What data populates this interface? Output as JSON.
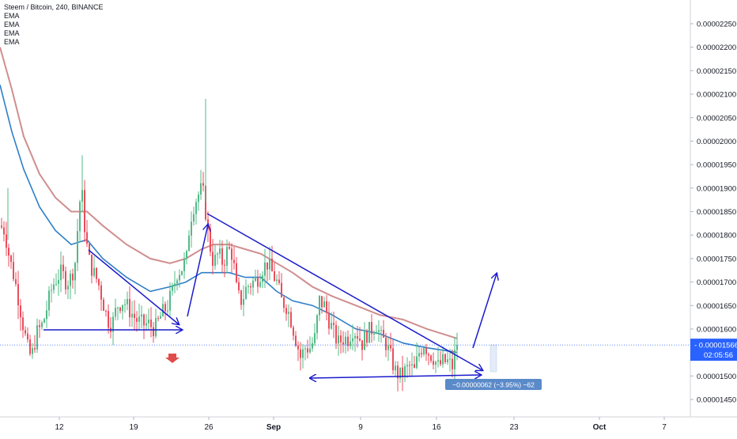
{
  "chart_data": {
    "type": "candlestick",
    "title": "Steem / Bitcoin, 240, BINANCE",
    "symbol": "Steem / Bitcoin",
    "interval": "240",
    "exchange": "BINANCE",
    "indicators": [
      "EMA",
      "EMA",
      "EMA",
      "EMA"
    ],
    "y_axis": {
      "ticks": [
        "0.00002250",
        "0.00002200",
        "0.00002150",
        "0.00002100",
        "0.00002050",
        "0.00002000",
        "0.00001950",
        "0.00001900",
        "0.00001850",
        "0.00001800",
        "0.00001750",
        "0.00001700",
        "0.00001650",
        "0.00001600",
        "0.00001500",
        "0.00001450"
      ],
      "ylim": [
        1.41e-05,
        2.28e-05
      ]
    },
    "x_axis": {
      "ticks": [
        "12",
        "19",
        "26",
        "Sep",
        "9",
        "16",
        "23",
        "Oct",
        "7"
      ]
    },
    "last_price": "0.00001566",
    "countdown": "02:05:56",
    "measure_label": "−0.00000062 (−3.95%) −62",
    "colors": {
      "up": "#53b987",
      "down": "#eb4d5c",
      "ema_fast": "#2f7fc7",
      "ema_slow": "#c87a7a",
      "drawing": "#1a1acc",
      "price_tag": "#2962ff",
      "measure_bg": "#5b8ac9",
      "signal_arrow": "#e04b4b"
    },
    "ohlc_anchors": [
      [
        0,
        1.82e-05
      ],
      [
        6,
        1.81e-05
      ],
      [
        12,
        1.75e-05
      ],
      [
        18,
        1.71e-05
      ],
      [
        24,
        1.66e-05
      ],
      [
        30,
        1.6e-05
      ],
      [
        36,
        1.55e-05
      ],
      [
        40,
        1.54e-05
      ],
      [
        46,
        1.59e-05
      ],
      [
        54,
        1.61e-05
      ],
      [
        60,
        1.65e-05
      ],
      [
        66,
        1.69e-05
      ],
      [
        72,
        1.71e-05
      ],
      [
        78,
        1.72e-05
      ],
      [
        84,
        1.7e-05
      ],
      [
        90,
        1.71e-05
      ],
      [
        96,
        1.75e-05
      ],
      [
        100,
        1.87e-05
      ],
      [
        104,
        1.88e-05
      ],
      [
        108,
        1.8e-05
      ],
      [
        112,
        1.75e-05
      ],
      [
        118,
        1.72e-05
      ],
      [
        124,
        1.7e-05
      ],
      [
        130,
        1.66e-05
      ],
      [
        136,
        1.62e-05
      ],
      [
        142,
        1.61e-05
      ],
      [
        148,
        1.65e-05
      ],
      [
        156,
        1.66e-05
      ],
      [
        164,
        1.64e-05
      ],
      [
        172,
        1.62e-05
      ],
      [
        180,
        1.61e-05
      ],
      [
        188,
        1.61e-05
      ],
      [
        196,
        1.6e-05
      ],
      [
        204,
        1.63e-05
      ],
      [
        212,
        1.65e-05
      ],
      [
        218,
        1.68e-05
      ],
      [
        224,
        1.72e-05
      ],
      [
        230,
        1.73e-05
      ],
      [
        236,
        1.75e-05
      ],
      [
        240,
        1.83e-05
      ],
      [
        246,
        1.87e-05
      ],
      [
        252,
        1.89e-05
      ],
      [
        256,
        1.9e-05
      ],
      [
        260,
        1.85e-05
      ],
      [
        264,
        1.79e-05
      ],
      [
        270,
        1.74e-05
      ],
      [
        276,
        1.76e-05
      ],
      [
        282,
        1.74e-05
      ],
      [
        288,
        1.77e-05
      ],
      [
        294,
        1.76e-05
      ],
      [
        300,
        1.67e-05
      ],
      [
        306,
        1.66e-05
      ],
      [
        312,
        1.69e-05
      ],
      [
        320,
        1.7e-05
      ],
      [
        326,
        1.71e-05
      ],
      [
        332,
        1.73e-05
      ],
      [
        338,
        1.74e-05
      ],
      [
        344,
        1.72e-05
      ],
      [
        350,
        1.7e-05
      ],
      [
        356,
        1.66e-05
      ],
      [
        362,
        1.65e-05
      ],
      [
        368,
        1.62e-05
      ],
      [
        374,
        1.58e-05
      ],
      [
        380,
        1.54e-05
      ],
      [
        386,
        1.56e-05
      ],
      [
        392,
        1.56e-05
      ],
      [
        398,
        1.58e-05
      ],
      [
        404,
        1.66e-05
      ],
      [
        410,
        1.65e-05
      ],
      [
        416,
        1.62e-05
      ],
      [
        422,
        1.59e-05
      ],
      [
        428,
        1.57e-05
      ],
      [
        434,
        1.58e-05
      ],
      [
        440,
        1.58e-05
      ],
      [
        446,
        1.6e-05
      ],
      [
        452,
        1.59e-05
      ],
      [
        458,
        1.57e-05
      ],
      [
        464,
        1.59e-05
      ],
      [
        470,
        1.6e-05
      ],
      [
        476,
        1.61e-05
      ],
      [
        482,
        1.58e-05
      ],
      [
        488,
        1.57e-05
      ],
      [
        494,
        1.54e-05
      ],
      [
        500,
        1.51e-05
      ],
      [
        506,
        1.5e-05
      ],
      [
        512,
        1.51e-05
      ],
      [
        518,
        1.52e-05
      ],
      [
        524,
        1.51e-05
      ],
      [
        530,
        1.55e-05
      ],
      [
        536,
        1.57e-05
      ],
      [
        542,
        1.55e-05
      ],
      [
        548,
        1.54e-05
      ],
      [
        554,
        1.52e-05
      ],
      [
        560,
        1.53e-05
      ],
      [
        566,
        1.53e-05
      ],
      [
        572,
        1.52e-05
      ],
      [
        578,
        1.57e-05
      ]
    ],
    "ema_fast_points": [
      [
        0,
        2.12e-05
      ],
      [
        15,
        2.02e-05
      ],
      [
        30,
        1.94e-05
      ],
      [
        50,
        1.86e-05
      ],
      [
        70,
        1.81e-05
      ],
      [
        90,
        1.78e-05
      ],
      [
        110,
        1.79e-05
      ],
      [
        130,
        1.75e-05
      ],
      [
        160,
        1.71e-05
      ],
      [
        190,
        1.68e-05
      ],
      [
        215,
        1.69e-05
      ],
      [
        235,
        1.7e-05
      ],
      [
        255,
        1.72e-05
      ],
      [
        270,
        1.72e-05
      ],
      [
        290,
        1.72e-05
      ],
      [
        310,
        1.71e-05
      ],
      [
        330,
        1.71e-05
      ],
      [
        350,
        1.68e-05
      ],
      [
        370,
        1.66e-05
      ],
      [
        395,
        1.65e-05
      ],
      [
        420,
        1.63e-05
      ],
      [
        450,
        1.6e-05
      ],
      [
        480,
        1.59e-05
      ],
      [
        510,
        1.57e-05
      ],
      [
        540,
        1.56e-05
      ],
      [
        578,
        1.55e-05
      ]
    ],
    "ema_slow_points": [
      [
        0,
        2.2e-05
      ],
      [
        15,
        2.11e-05
      ],
      [
        30,
        2.01e-05
      ],
      [
        50,
        1.93e-05
      ],
      [
        70,
        1.88e-05
      ],
      [
        90,
        1.85e-05
      ],
      [
        110,
        1.85e-05
      ],
      [
        130,
        1.82e-05
      ],
      [
        160,
        1.78e-05
      ],
      [
        190,
        1.75e-05
      ],
      [
        215,
        1.74e-05
      ],
      [
        235,
        1.75e-05
      ],
      [
        255,
        1.77e-05
      ],
      [
        270,
        1.78e-05
      ],
      [
        290,
        1.78e-05
      ],
      [
        310,
        1.77e-05
      ],
      [
        330,
        1.76e-05
      ],
      [
        350,
        1.74e-05
      ],
      [
        370,
        1.72e-05
      ],
      [
        395,
        1.69e-05
      ],
      [
        420,
        1.67e-05
      ],
      [
        450,
        1.65e-05
      ],
      [
        480,
        1.63e-05
      ],
      [
        510,
        1.62e-05
      ],
      [
        540,
        1.6e-05
      ],
      [
        578,
        1.58e-05
      ]
    ]
  }
}
